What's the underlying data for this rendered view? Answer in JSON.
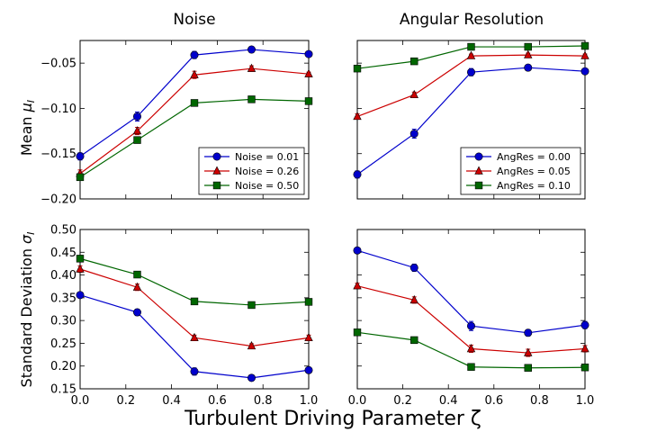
{
  "figure": {
    "xlabel": "Turbulent Driving Parameter ζ"
  },
  "chart_data": [
    {
      "type": "line",
      "column_title": "Noise",
      "ylabel_main": "Mean ",
      "ylabel_symbol": "μ",
      "ylabel_sub": "I",
      "x": [
        0.0,
        0.25,
        0.5,
        0.75,
        1.0
      ],
      "xlim": [
        0.0,
        1.0
      ],
      "ylim": [
        -0.2,
        -0.025
      ],
      "xticks": [],
      "yticks": [
        "−0.20",
        "−0.15",
        "−0.10",
        "−0.05"
      ],
      "ytick_values": [
        -0.2,
        -0.15,
        -0.1,
        -0.05
      ],
      "legend_position": "lower-right",
      "series": [
        {
          "name": "Noise = 0.01",
          "color": "#0000cc",
          "marker": "circle",
          "values": [
            -0.153,
            -0.109,
            -0.041,
            -0.035,
            -0.04
          ],
          "errors": [
            0.004,
            0.005,
            0.004,
            0.003,
            0.002
          ]
        },
        {
          "name": "Noise = 0.26",
          "color": "#cc0000",
          "marker": "triangle",
          "values": [
            -0.172,
            -0.125,
            -0.063,
            -0.056,
            -0.062
          ],
          "errors": [
            0.004,
            0.004,
            0.004,
            0.003,
            0.002
          ]
        },
        {
          "name": "Noise = 0.50",
          "color": "#006600",
          "marker": "square",
          "values": [
            -0.176,
            -0.135,
            -0.094,
            -0.09,
            -0.092
          ],
          "errors": [
            0.003,
            0.003,
            0.002,
            0.002,
            0.002
          ]
        }
      ]
    },
    {
      "type": "line",
      "column_title": "Angular Resolution",
      "x": [
        0.0,
        0.25,
        0.5,
        0.75,
        1.0
      ],
      "xlim": [
        0.0,
        1.0
      ],
      "ylim": [
        -0.2,
        -0.025
      ],
      "xticks": [],
      "yticks": [],
      "legend_position": "lower-right",
      "series": [
        {
          "name": "AngRes = 0.00",
          "color": "#0000cc",
          "marker": "circle",
          "values": [
            -0.173,
            -0.128,
            -0.06,
            -0.055,
            -0.059
          ],
          "errors": [
            0.004,
            0.005,
            0.004,
            0.003,
            0.002
          ]
        },
        {
          "name": "AngRes = 0.05",
          "color": "#cc0000",
          "marker": "triangle",
          "values": [
            -0.109,
            -0.085,
            -0.042,
            -0.041,
            -0.042
          ],
          "errors": [
            0.003,
            0.003,
            0.002,
            0.002,
            0.002
          ]
        },
        {
          "name": "AngRes = 0.10",
          "color": "#006600",
          "marker": "square",
          "values": [
            -0.056,
            -0.048,
            -0.032,
            -0.032,
            -0.031
          ],
          "errors": [
            0.002,
            0.002,
            0.002,
            0.002,
            0.002
          ]
        }
      ]
    },
    {
      "type": "line",
      "ylabel_main": "Standard Deviation ",
      "ylabel_symbol": "σ",
      "ylabel_sub": "I",
      "x": [
        0.0,
        0.25,
        0.5,
        0.75,
        1.0
      ],
      "xlim": [
        0.0,
        1.0
      ],
      "ylim": [
        0.15,
        0.5
      ],
      "xticks": [
        "0.0",
        "0.2",
        "0.4",
        "0.6",
        "0.8",
        "1.0"
      ],
      "xtick_values": [
        0.0,
        0.2,
        0.4,
        0.6,
        0.8,
        1.0
      ],
      "yticks": [
        "0.15",
        "0.20",
        "0.25",
        "0.30",
        "0.35",
        "0.40",
        "0.45",
        "0.50"
      ],
      "ytick_values": [
        0.15,
        0.2,
        0.25,
        0.3,
        0.35,
        0.4,
        0.45,
        0.5
      ],
      "series": [
        {
          "name": "Noise = 0.01",
          "color": "#0000cc",
          "marker": "circle",
          "values": [
            0.356,
            0.318,
            0.188,
            0.174,
            0.191
          ],
          "errors": [
            0.006,
            0.007,
            0.008,
            0.006,
            0.006
          ]
        },
        {
          "name": "Noise = 0.26",
          "color": "#cc0000",
          "marker": "triangle",
          "values": [
            0.413,
            0.373,
            0.262,
            0.244,
            0.262
          ],
          "errors": [
            0.007,
            0.007,
            0.006,
            0.005,
            0.006
          ]
        },
        {
          "name": "Noise = 0.50",
          "color": "#006600",
          "marker": "square",
          "values": [
            0.436,
            0.401,
            0.342,
            0.334,
            0.341
          ],
          "errors": [
            0.007,
            0.004,
            0.004,
            0.004,
            0.006
          ]
        }
      ]
    },
    {
      "type": "line",
      "x": [
        0.0,
        0.25,
        0.5,
        0.75,
        1.0
      ],
      "xlim": [
        0.0,
        1.0
      ],
      "ylim": [
        0.15,
        0.5
      ],
      "xticks": [
        "0.0",
        "0.2",
        "0.4",
        "0.6",
        "0.8",
        "1.0"
      ],
      "xtick_values": [
        0.0,
        0.2,
        0.4,
        0.6,
        0.8,
        1.0
      ],
      "yticks": [],
      "series": [
        {
          "name": "AngRes = 0.00",
          "color": "#0000cc",
          "marker": "circle",
          "values": [
            0.454,
            0.416,
            0.288,
            0.273,
            0.29
          ],
          "errors": [
            0.006,
            0.008,
            0.01,
            0.007,
            0.008
          ]
        },
        {
          "name": "AngRes = 0.05",
          "color": "#cc0000",
          "marker": "triangle",
          "values": [
            0.376,
            0.345,
            0.238,
            0.229,
            0.238
          ],
          "errors": [
            0.006,
            0.007,
            0.008,
            0.008,
            0.007
          ]
        },
        {
          "name": "AngRes = 0.10",
          "color": "#006600",
          "marker": "square",
          "values": [
            0.274,
            0.257,
            0.198,
            0.196,
            0.197
          ],
          "errors": [
            0.004,
            0.004,
            0.006,
            0.006,
            0.005
          ]
        }
      ]
    }
  ]
}
